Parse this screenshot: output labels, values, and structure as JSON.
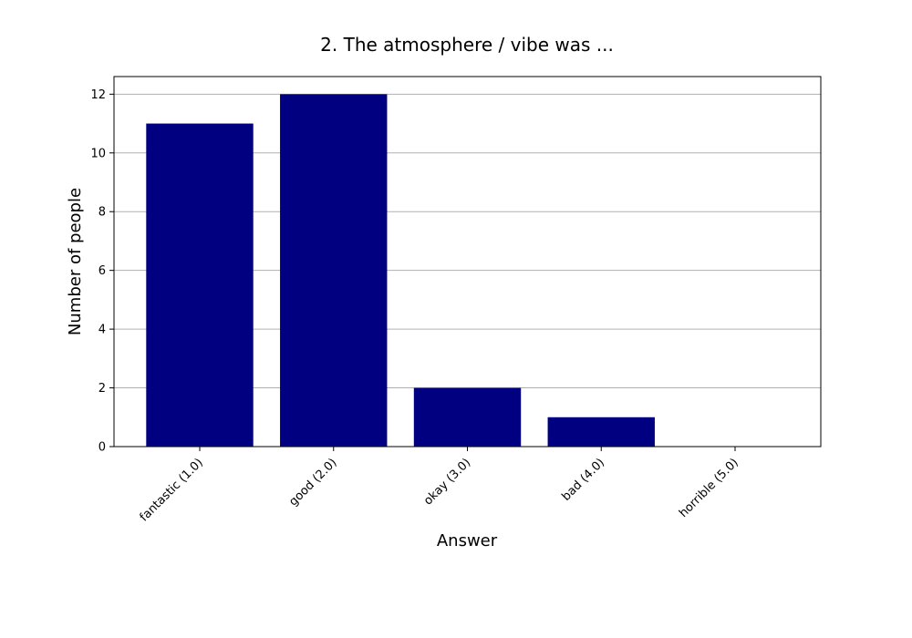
{
  "chart_data": {
    "type": "bar",
    "title": "2. The atmosphere / vibe was ...",
    "xlabel": "Answer",
    "ylabel": "Number of people",
    "categories": [
      "fantastic (1.0)",
      "good (2.0)",
      "okay (3.0)",
      "bad (4.0)",
      "horrible (5.0)"
    ],
    "values": [
      11,
      12,
      2,
      1,
      0
    ],
    "ylim": [
      0,
      12.6
    ],
    "yticks": [
      0,
      2,
      4,
      6,
      8,
      10,
      12
    ],
    "grid": "horizontal",
    "bar_color": "#000080",
    "grid_color": "#b0b0b0"
  }
}
